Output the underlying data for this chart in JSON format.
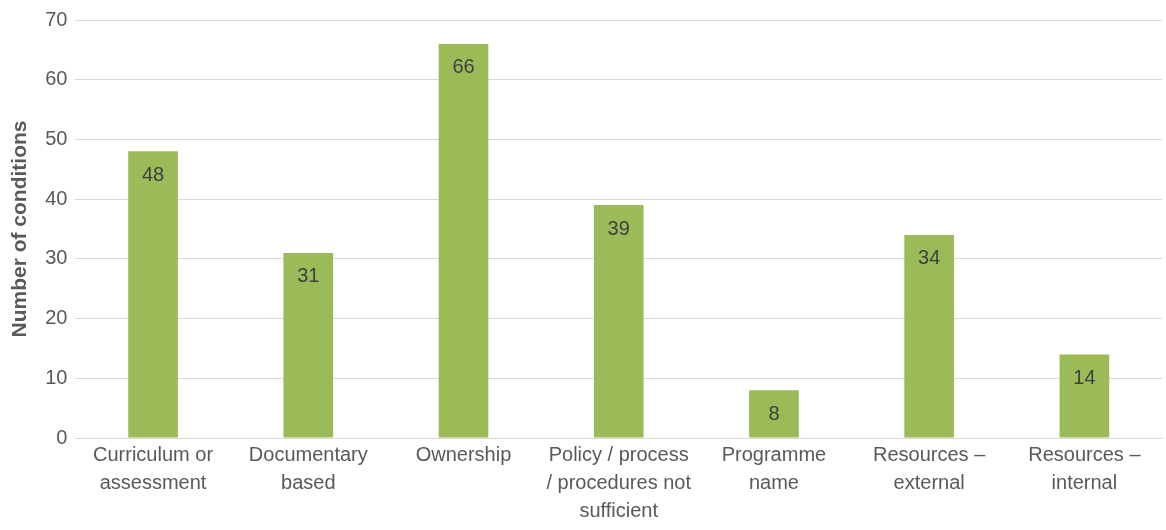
{
  "chart_data": {
    "type": "bar",
    "ylabel": "Number of conditions",
    "categories": [
      "Curriculum or assessment",
      "Documentary based",
      "Ownership",
      "Policy / process / procedures not sufficient",
      "Programme name",
      "Resources – external",
      "Resources – internal"
    ],
    "values": [
      48,
      31,
      66,
      39,
      8,
      34,
      14
    ],
    "color": "#9bbb59",
    "ylim": [
      0,
      70
    ],
    "yticks": [
      0,
      10,
      20,
      30,
      40,
      50,
      60,
      70
    ],
    "grid": "y",
    "data_labels": true,
    "legend": false
  }
}
